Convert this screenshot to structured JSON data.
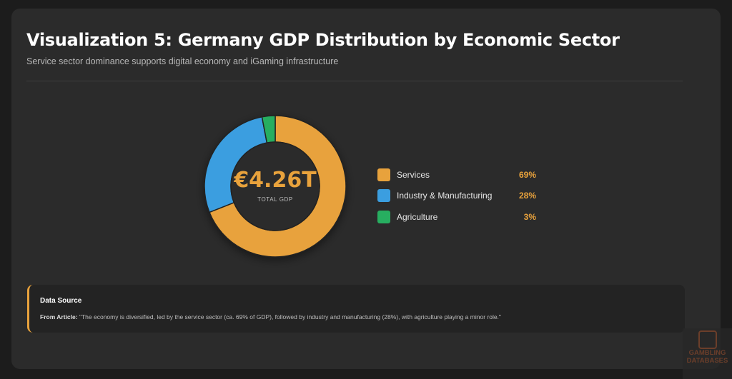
{
  "header": {
    "title": "Visualization 5: Germany GDP Distribution by Economic Sector",
    "subtitle": "Service sector dominance supports digital economy and iGaming infrastructure"
  },
  "chart_data": {
    "type": "pie",
    "variant": "donut",
    "categories": [
      "Services",
      "Industry & Manufacturing",
      "Agriculture"
    ],
    "values": [
      69,
      28,
      3
    ],
    "value_labels": [
      "69%",
      "28%",
      "3%"
    ],
    "colors": [
      "#e8a23c",
      "#3b9ee0",
      "#27ae60"
    ],
    "center_value": "€4.26T",
    "center_label": "TOTAL GDP",
    "legend_position": "right"
  },
  "source": {
    "title": "Data Source",
    "prefix": "From Article:",
    "quote": "\"The economy is diversified, led by the service sector (ca. 69% of GDP), followed by industry and manufacturing (28%), with agriculture playing a minor role.\""
  },
  "watermark": {
    "line1": "GAMBLING",
    "line2": "DATABASES"
  }
}
